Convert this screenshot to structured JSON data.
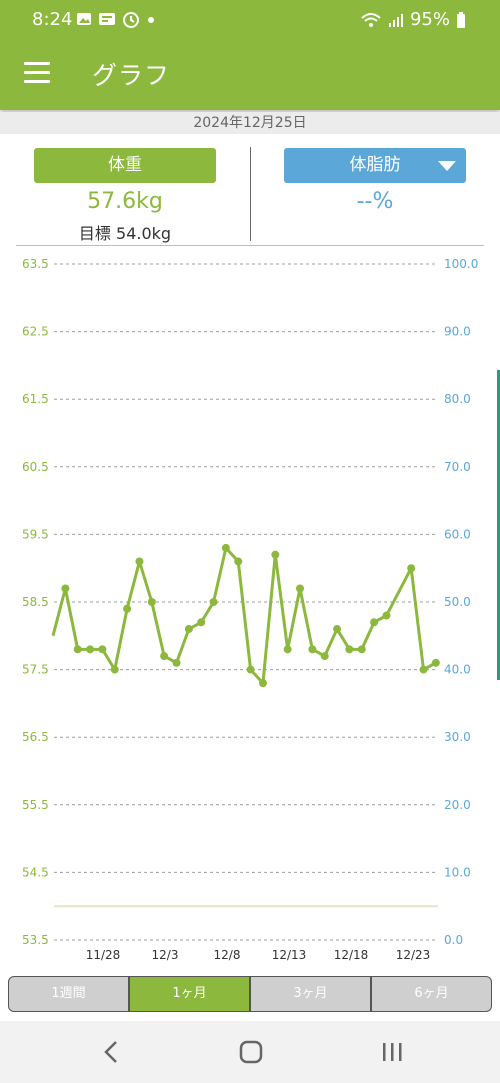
{
  "status_bar": {
    "time": "8:24",
    "battery": "95%",
    "icons": [
      "image-icon",
      "newspaper-icon",
      "alarm-icon",
      "dot-icon",
      "wifi-icon",
      "signal-icon",
      "battery-icon"
    ]
  },
  "app_bar": {
    "title": "グラフ",
    "menu_icon": "hamburger-menu-icon"
  },
  "date": "2024年12月25日",
  "summary": {
    "weight_label": "体重",
    "weight_value": "57.6kg",
    "goal_text": "目標 54.0kg",
    "fat_label": "体脂肪",
    "fat_value": "--%"
  },
  "colors": {
    "accent": "#8cb83d",
    "fat": "#5ba7d8",
    "goal_line": "#e8e4cc"
  },
  "chart_data": {
    "type": "line",
    "left_axis": {
      "ylim": [
        53.5,
        63.5
      ],
      "ticks": [
        "63.5",
        "62.5",
        "61.5",
        "60.5",
        "59.5",
        "58.5",
        "57.5",
        "56.5",
        "55.5",
        "54.5",
        "53.5"
      ]
    },
    "right_axis": {
      "ylim": [
        0,
        100
      ],
      "ticks": [
        "100.0",
        "90.0",
        "80.0",
        "70.0",
        "60.0",
        "50.0",
        "40.0",
        "30.0",
        "20.0",
        "10.0",
        "0.0"
      ]
    },
    "x_labels": [
      "11/28",
      "12/3",
      "12/8",
      "12/13",
      "12/18",
      "12/23"
    ],
    "goal": 54.0,
    "series": [
      {
        "values": [
          58.0,
          58.7,
          57.8,
          57.8,
          57.8,
          57.5,
          58.4,
          59.1,
          58.5,
          57.7,
          57.6,
          58.1,
          58.2,
          58.5,
          59.3,
          59.1,
          57.5,
          57.3,
          59.2,
          57.8,
          58.7,
          57.8,
          57.7,
          58.1,
          57.8,
          57.8,
          58.2,
          58.3,
          null,
          59.0,
          57.5,
          57.6
        ]
      }
    ]
  },
  "periods": {
    "tabs": [
      "1週間",
      "1ヶ月",
      "3ヶ月",
      "6ヶ月"
    ],
    "active": 1
  },
  "nav_bar": {
    "icons": [
      "back-icon",
      "home-icon",
      "recents-icon"
    ]
  }
}
